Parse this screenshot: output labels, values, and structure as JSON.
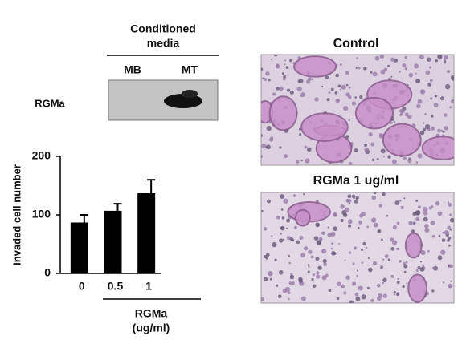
{
  "blot": {
    "header": [
      "Conditioned",
      "media"
    ],
    "lanes": [
      "MB",
      "MT"
    ],
    "row_label": "RGMa"
  },
  "chart_data": {
    "type": "bar",
    "y_label": "Invaded cell number",
    "x_label": [
      "RGMa",
      "(ug/ml)"
    ],
    "categories": [
      "0",
      "0.5",
      "1"
    ],
    "values": [
      87,
      107,
      137
    ],
    "errors": [
      13,
      12,
      23
    ],
    "color": "#000000",
    "ylim": [
      0,
      200
    ],
    "yticks": [
      0,
      100,
      200
    ]
  },
  "images": [
    {
      "title": "Control"
    },
    {
      "title": "RGMa 1 ug/ml"
    }
  ]
}
